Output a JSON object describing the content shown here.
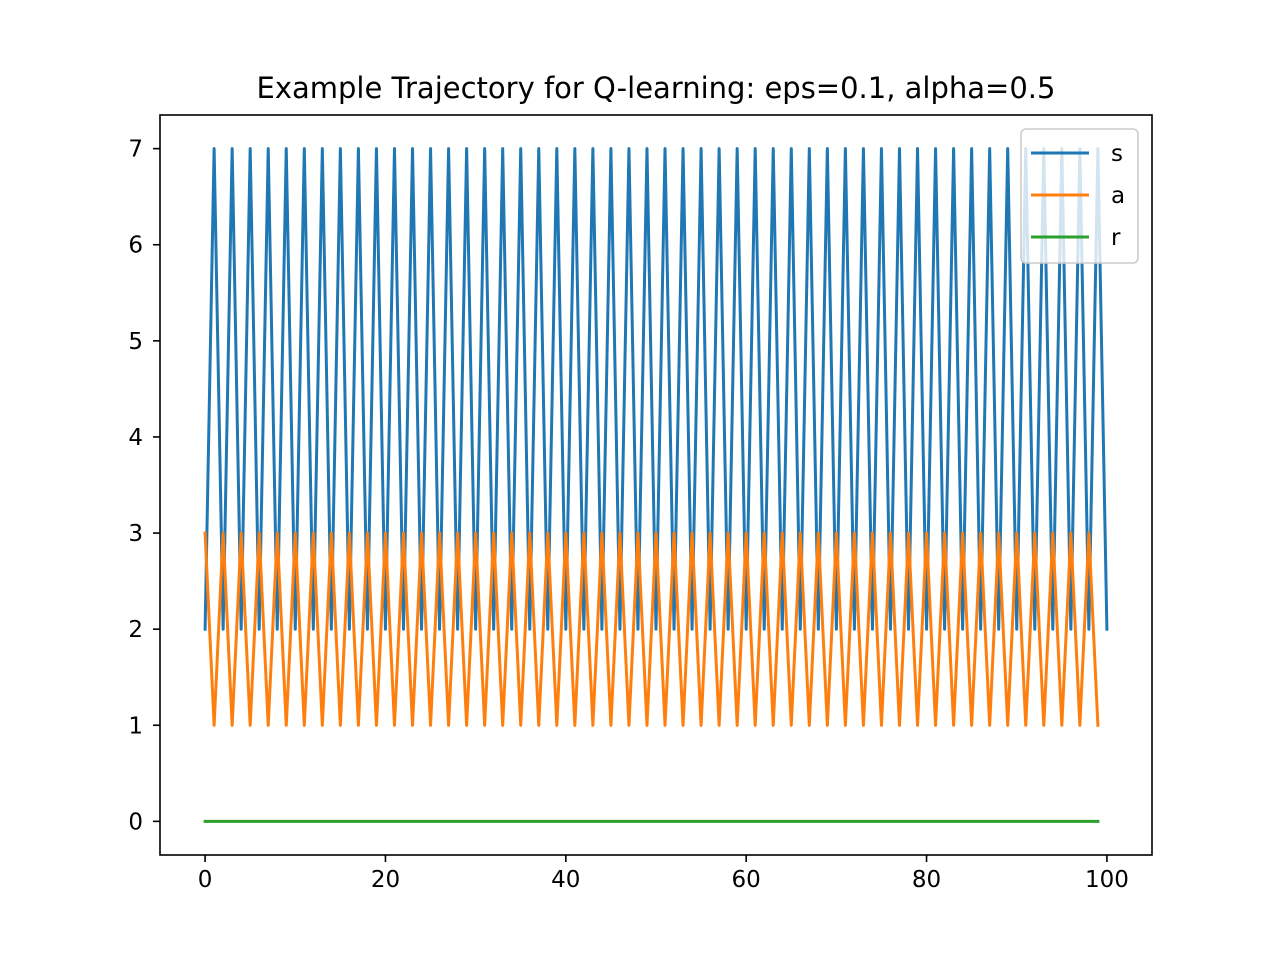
{
  "chart_data": {
    "type": "line",
    "title": "Example Trajectory for Q-learning: eps=0.1, alpha=0.5",
    "xlabel": "",
    "ylabel": "",
    "xlim": [
      -5,
      105
    ],
    "ylim": [
      -0.35,
      7.35
    ],
    "x_ticks": [
      0,
      20,
      40,
      60,
      80,
      100
    ],
    "y_ticks": [
      0,
      1,
      2,
      3,
      4,
      5,
      6,
      7
    ],
    "grid": false,
    "legend_position": "top-right",
    "series": [
      {
        "name": "s",
        "color": "#1f77b4",
        "x_start": 0,
        "values": [
          2,
          7,
          2,
          7,
          2,
          7,
          2,
          7,
          2,
          7,
          2,
          7,
          2,
          7,
          2,
          7,
          2,
          7,
          2,
          7,
          2,
          7,
          2,
          7,
          2,
          7,
          2,
          7,
          2,
          7,
          2,
          7,
          2,
          7,
          2,
          7,
          2,
          7,
          2,
          7,
          2,
          7,
          2,
          7,
          2,
          7,
          2,
          7,
          2,
          7,
          2,
          7,
          2,
          7,
          2,
          7,
          2,
          7,
          2,
          7,
          2,
          7,
          2,
          7,
          2,
          7,
          2,
          7,
          2,
          7,
          2,
          7,
          2,
          7,
          2,
          7,
          2,
          7,
          2,
          7,
          2,
          7,
          2,
          7,
          2,
          7,
          2,
          7,
          2,
          7,
          2,
          7,
          2,
          7,
          2,
          7,
          2,
          7,
          2,
          7,
          2
        ]
      },
      {
        "name": "a",
        "color": "#ff7f0e",
        "x_start": 0,
        "values": [
          3,
          1,
          3,
          1,
          3,
          1,
          3,
          1,
          3,
          1,
          3,
          1,
          3,
          1,
          3,
          1,
          3,
          1,
          3,
          1,
          3,
          1,
          3,
          1,
          3,
          1,
          3,
          1,
          3,
          1,
          3,
          1,
          3,
          1,
          3,
          1,
          3,
          1,
          3,
          1,
          3,
          1,
          3,
          1,
          3,
          1,
          3,
          1,
          3,
          1,
          3,
          1,
          3,
          1,
          3,
          1,
          3,
          1,
          3,
          1,
          3,
          1,
          3,
          1,
          3,
          1,
          3,
          1,
          3,
          1,
          3,
          1,
          3,
          1,
          3,
          1,
          3,
          1,
          3,
          1,
          3,
          1,
          3,
          1,
          3,
          1,
          3,
          1,
          3,
          1,
          3,
          1,
          3,
          1,
          3,
          1,
          3,
          1,
          3,
          1
        ]
      },
      {
        "name": "r",
        "color": "#2ca02c",
        "x_start": 0,
        "values": [
          0,
          0,
          0,
          0,
          0,
          0,
          0,
          0,
          0,
          0,
          0,
          0,
          0,
          0,
          0,
          0,
          0,
          0,
          0,
          0,
          0,
          0,
          0,
          0,
          0,
          0,
          0,
          0,
          0,
          0,
          0,
          0,
          0,
          0,
          0,
          0,
          0,
          0,
          0,
          0,
          0,
          0,
          0,
          0,
          0,
          0,
          0,
          0,
          0,
          0,
          0,
          0,
          0,
          0,
          0,
          0,
          0,
          0,
          0,
          0,
          0,
          0,
          0,
          0,
          0,
          0,
          0,
          0,
          0,
          0,
          0,
          0,
          0,
          0,
          0,
          0,
          0,
          0,
          0,
          0,
          0,
          0,
          0,
          0,
          0,
          0,
          0,
          0,
          0,
          0,
          0,
          0,
          0,
          0,
          0,
          0,
          0,
          0,
          0,
          0
        ]
      }
    ]
  }
}
